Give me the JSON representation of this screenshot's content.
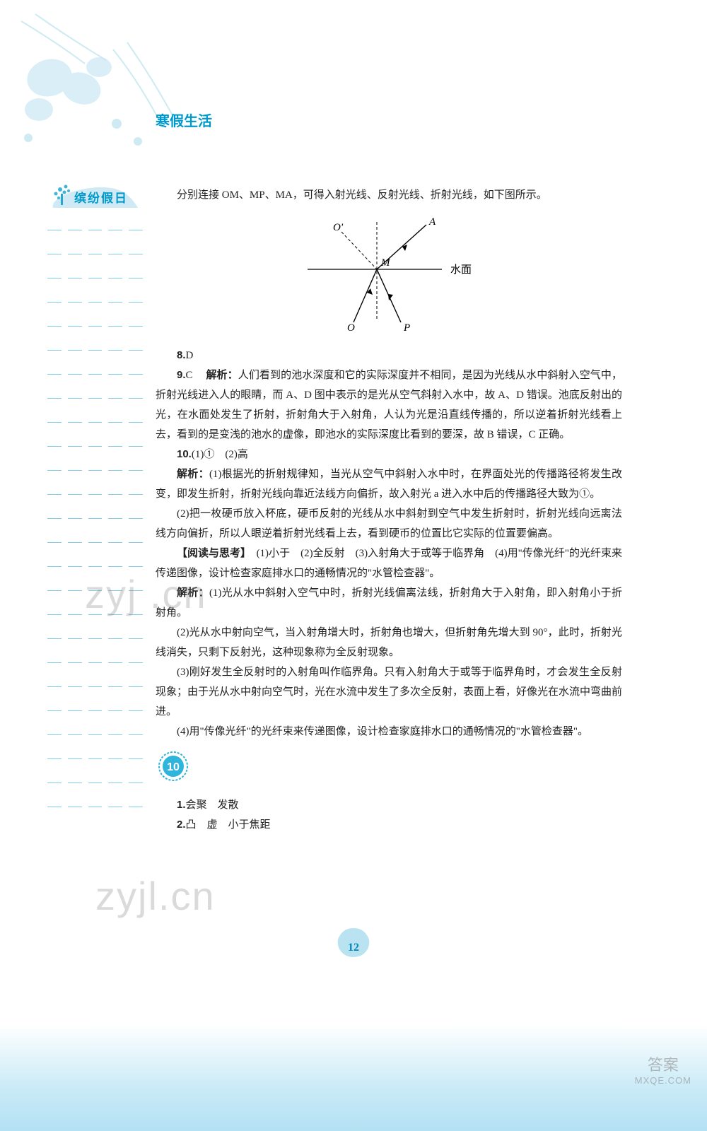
{
  "header": {
    "title": "寒假生活"
  },
  "sidebar": {
    "badge_label": "缤纷假日",
    "dash_rows": 25
  },
  "content": {
    "intro": "分别连接 OM、MP、MA，可得入射光线、反射光线、折射光线，如下图所示。",
    "diagram": {
      "labels": {
        "O_prime": "O'",
        "A": "A",
        "M": "M",
        "O": "O",
        "P": "P",
        "surface": "水面"
      },
      "colors": {
        "line": "#000000",
        "dash": "#000000"
      }
    },
    "q8": {
      "no": "8.",
      "ans": "D"
    },
    "q9": {
      "no": "9.",
      "ans": "C",
      "label": "解析：",
      "text": "人们看到的池水深度和它的实际深度并不相同，是因为光线从水中斜射入空气中，折射光线进入人的眼睛，而 A、D 图中表示的是光从空气斜射入水中，故 A、D 错误。池底反射出的光，在水面处发生了折射，折射角大于入射角，人认为光是沿直线传播的，所以逆着折射光线看上去，看到的是变浅的池水的虚像，即池水的实际深度比看到的要深，故 B 错误，C 正确。"
    },
    "q10": {
      "no": "10.",
      "ans": "(1)①　(2)高",
      "label": "解析：",
      "p1": "(1)根据光的折射规律知，当光从空气中斜射入水中时，在界面处光的传播路径将发生改变，即发生折射，折射光线向靠近法线方向偏折，故入射光 a 进入水中后的传播路径大致为①。",
      "p2": "(2)把一枚硬币放入杯底，硬币反射的光线从水中斜射到空气中发生折射时，折射光线向远离法线方向偏折，所以人眼逆着折射光线看上去，看到硬币的位置比它实际的位置要偏高。"
    },
    "reading": {
      "label": "【阅读与思考】",
      "ans": "(1)小于　(2)全反射　(3)入射角大于或等于临界角　(4)用\"传像光纤\"的光纤束来传递图像，设计检查家庭排水口的通畅情况的\"水管检查器\"。",
      "ex_label": "解析：",
      "p1": "(1)光从水中斜射入空气中时，折射光线偏离法线，折射角大于入射角，即入射角小于折射角。",
      "p2": "(2)光从水中射向空气，当入射角增大时，折射角也增大，但折射角先增大到 90°，此时，折射光线消失，只剩下反射光，这种现象称为全反射现象。",
      "p3": "(3)刚好发生全反射时的入射角叫作临界角。只有入射角大于或等于临界角时，才会发生全反射现象；由于光从水中射向空气时，光在水流中发生了多次全反射，表面上看，好像光在水流中弯曲前进。",
      "p4": "(4)用\"传像光纤\"的光纤束来传递图像，设计检查家庭排水口的通畅情况的\"水管检查器\"。"
    },
    "day10": {
      "num": "10",
      "a1_no": "1.",
      "a1": "会聚　发散",
      "a2_no": "2.",
      "a2": "凸　虚　小于焦距"
    }
  },
  "page": {
    "num": "12"
  },
  "watermarks": {
    "w1": "zyj .cn",
    "w2": "zyjl.cn"
  },
  "corner": {
    "line1": "答案",
    "line2": "MXQE.COM"
  },
  "colors": {
    "accent": "#0099cc",
    "light_blue": "#7fcde6",
    "page_badge": "#9dd8ea"
  }
}
